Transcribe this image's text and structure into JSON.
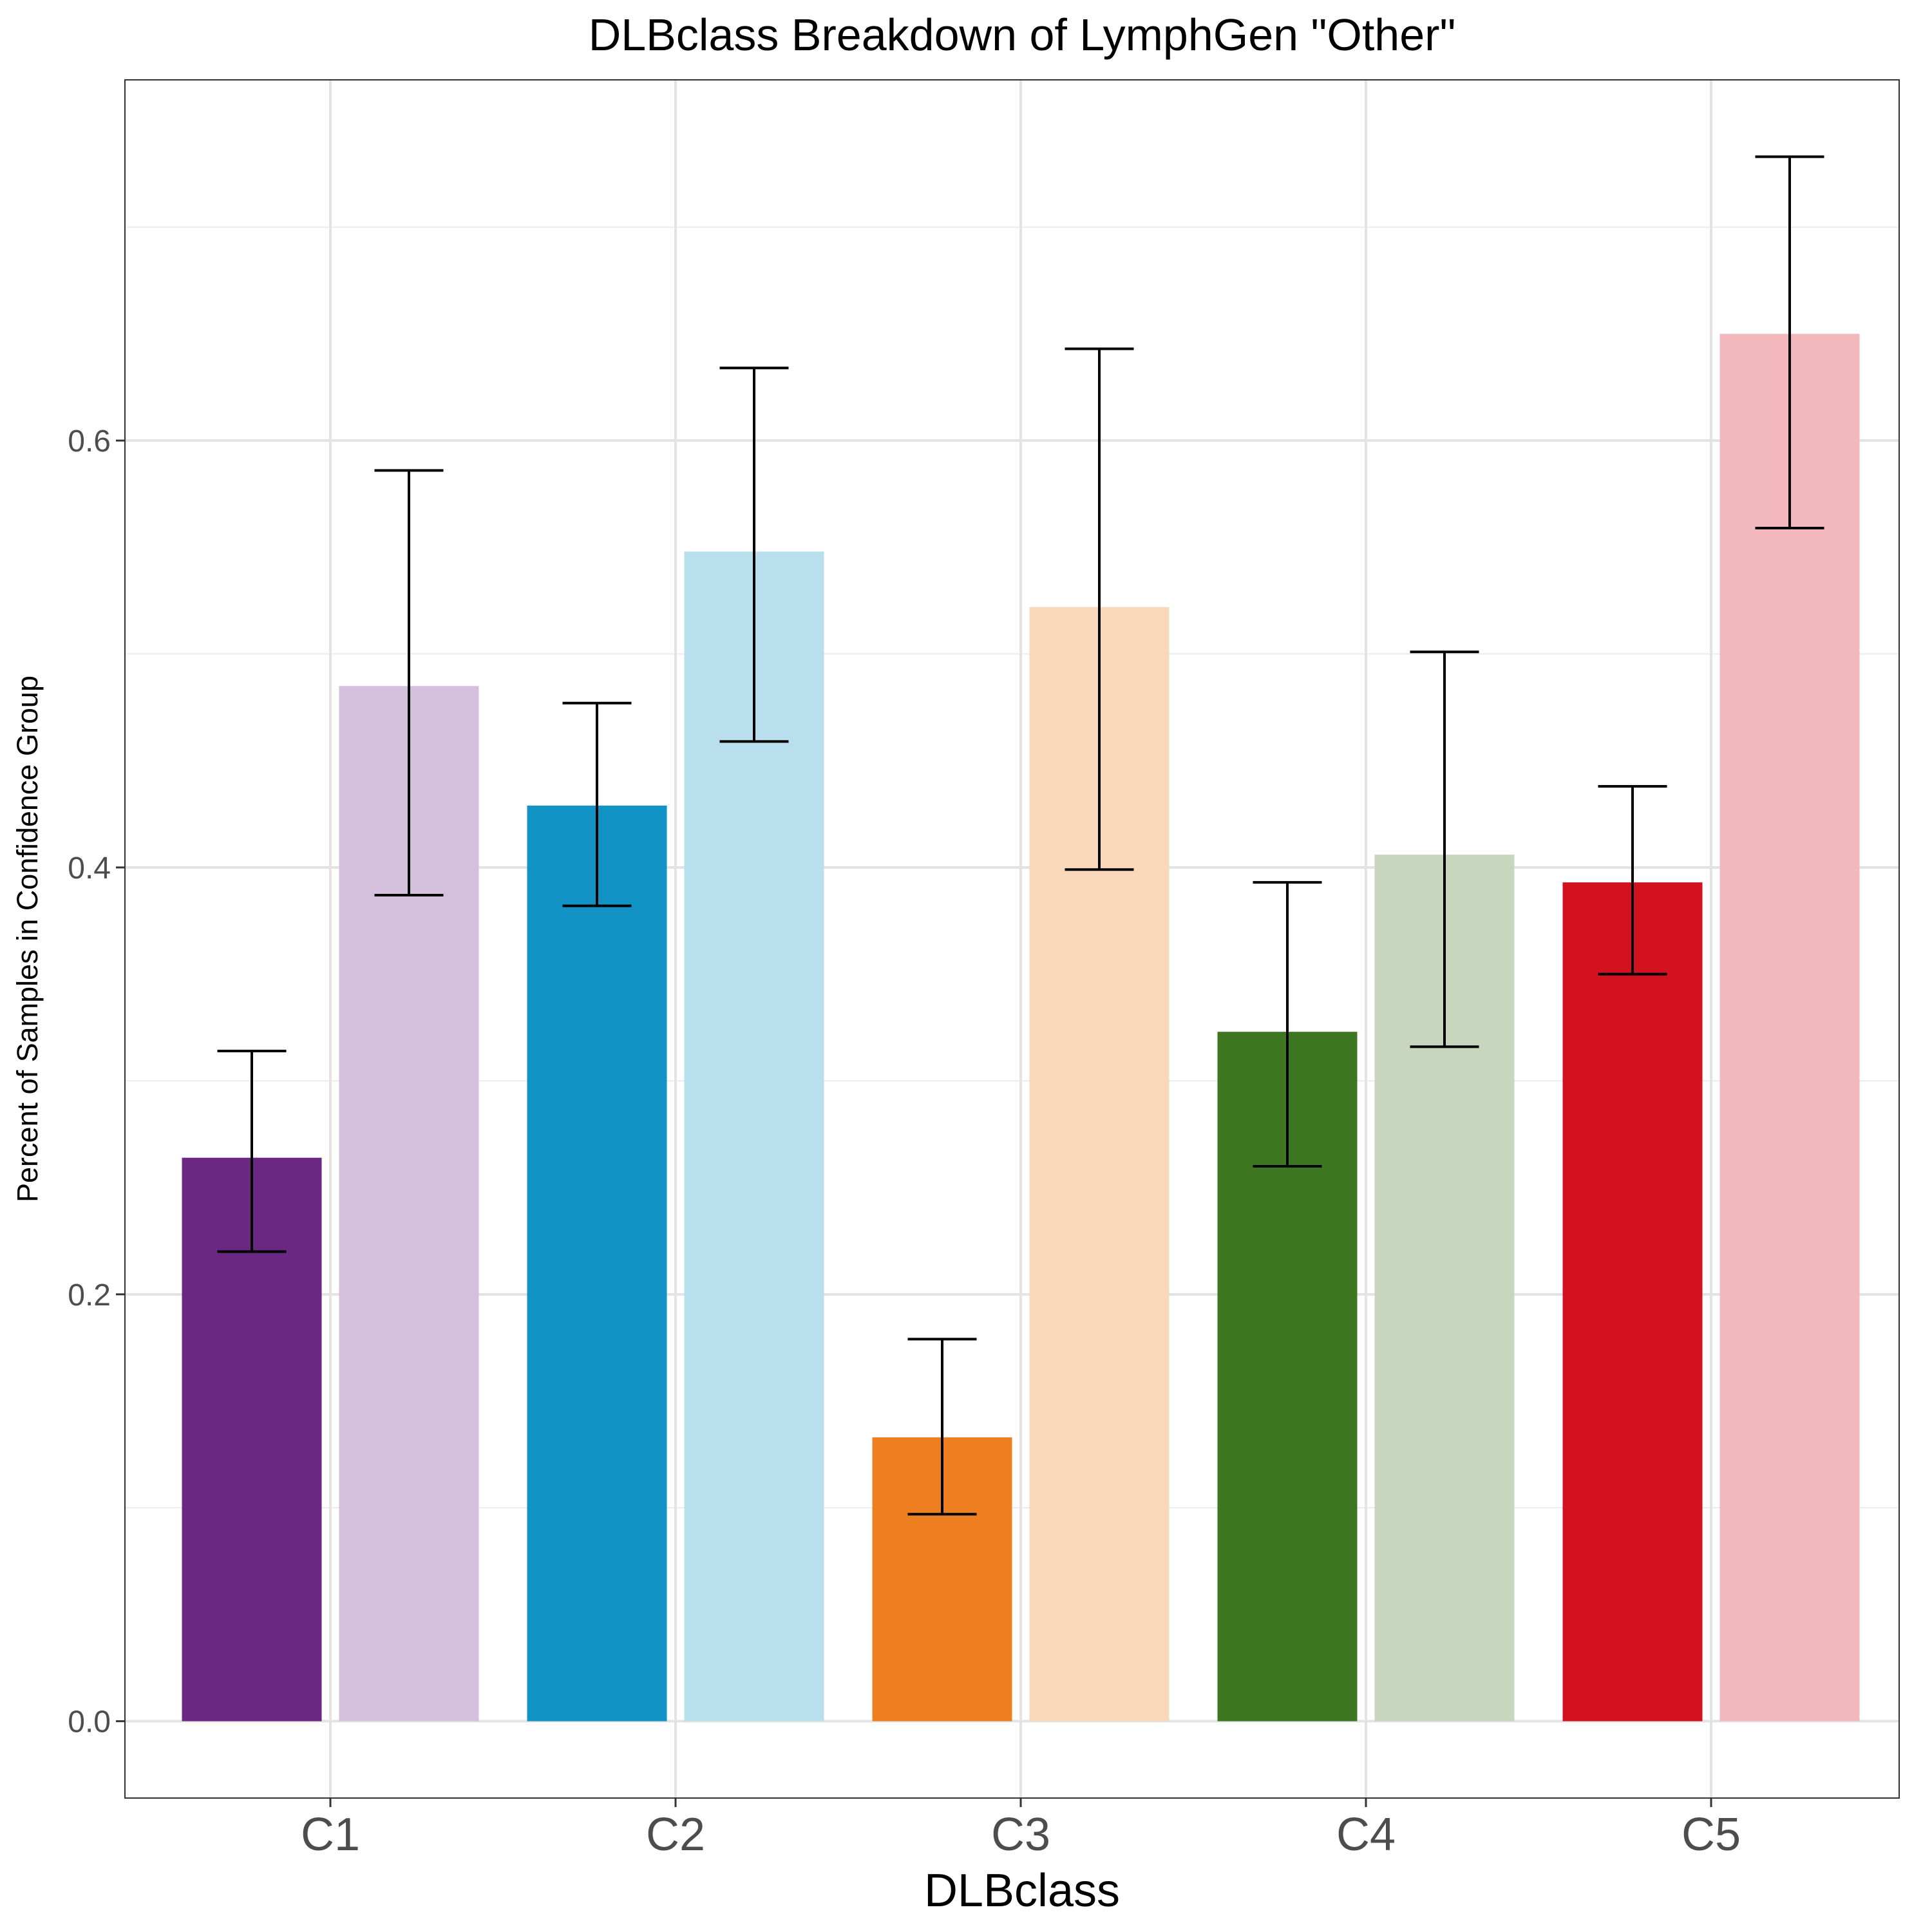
{
  "chart_data": {
    "type": "bar",
    "title": "DLBclass Breakdown of LymphGen \"Other\"",
    "xlabel": "DLBclass",
    "ylabel": "Percent of Samples in Confidence Group",
    "categories": [
      "C1",
      "C2",
      "C3",
      "C4",
      "C5"
    ],
    "yticks": [
      "0.0",
      "0.2",
      "0.4",
      "0.6"
    ],
    "ylim": [
      -0.036,
      0.769
    ],
    "grid": true,
    "legend": "none",
    "series": [
      {
        "values": [
          0.264,
          0.429,
          0.133,
          0.323,
          0.393
        ],
        "err_low": [
          0.22,
          0.382,
          0.097,
          0.26,
          0.35
        ],
        "err_high": [
          0.314,
          0.477,
          0.179,
          0.393,
          0.438
        ],
        "colors": [
          "#6B2882",
          "#1193C5",
          "#EE7F20",
          "#3D7722",
          "#D31220"
        ]
      },
      {
        "values": [
          0.485,
          0.548,
          0.522,
          0.406,
          0.65
        ],
        "err_low": [
          0.387,
          0.459,
          0.399,
          0.316,
          0.559
        ],
        "err_high": [
          0.586,
          0.634,
          0.643,
          0.501,
          0.733
        ],
        "colors": [
          "#D4C0DC",
          "#B9DFEE",
          "#F9D8BC",
          "#C7D6BC",
          "#F2B8BC"
        ]
      }
    ]
  }
}
